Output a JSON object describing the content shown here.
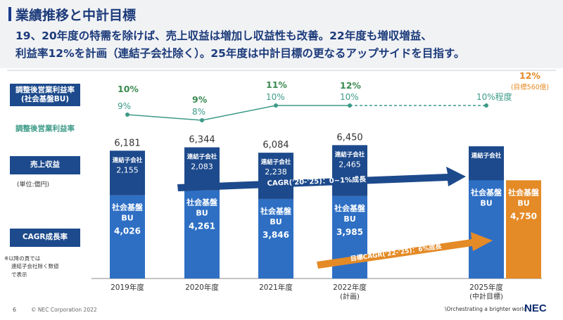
{
  "header": {
    "title": "業績推移と中計目標",
    "subtitle_line1": "19、20年度の特需を除けば、売上収益は増加し収益性も改善。22年度も増収増益、",
    "subtitle_line2": "利益率12%を計画（連結子会社除く）。25年度は中計目標の更なるアップサイドを目指す。"
  },
  "left_labels": {
    "margin_bu_line1": "調整後営業利益率",
    "margin_bu_line2": "(社会基盤BU)",
    "margin_total": "調整後営業利益率",
    "revenue": "売上収益",
    "unit": "(単位:億円)",
    "cagr": "CAGR成長率",
    "footnote_line1": "※以降の頁では",
    "footnote_line2": "連結子会社除く数値",
    "footnote_line3": "で表示"
  },
  "colors": {
    "navy": "#1d4a8c",
    "blue": "#2e6fc4",
    "orange": "#e48a26",
    "teal": "#3c9a88",
    "green": "#3a8a50"
  },
  "chart_data": {
    "type": "bar",
    "categories": [
      "2019年度",
      "2020年度",
      "2021年度",
      "2022年度",
      "2025年度"
    ],
    "category_sublabels": [
      "",
      "",
      "",
      "(計画)",
      "(中計目標)"
    ],
    "subsidiary_label": "連結子会社",
    "bu_label_line1": "社会基盤",
    "bu_label_line2": "BU",
    "series": [
      {
        "name": "社会基盤BU",
        "values": [
          4026,
          4261,
          3846,
          3985,
          4750
        ]
      },
      {
        "name": "連結子会社",
        "values": [
          2155,
          2083,
          2238,
          2465,
          null
        ]
      }
    ],
    "totals": [
      6181,
      6344,
      6084,
      6450,
      null
    ],
    "bu_margin_pct": [
      10,
      9,
      11,
      12,
      12
    ],
    "total_margin_pct": [
      9,
      8,
      10,
      10,
      10
    ],
    "target_2025_margin_suffix": "%程度",
    "target_2025_note": "(目標560億)",
    "cagr_total_label": "CAGR('20-'25)：0~1%成長",
    "cagr_bu_label": "目標CAGR('22-'25)：6%成長",
    "ylim": [
      0,
      7000
    ]
  },
  "footer": {
    "page": "6",
    "copyright": "© NEC Corporation 2022",
    "tagline": "\\Orchestrating a brighter world",
    "logo": "NEC"
  }
}
